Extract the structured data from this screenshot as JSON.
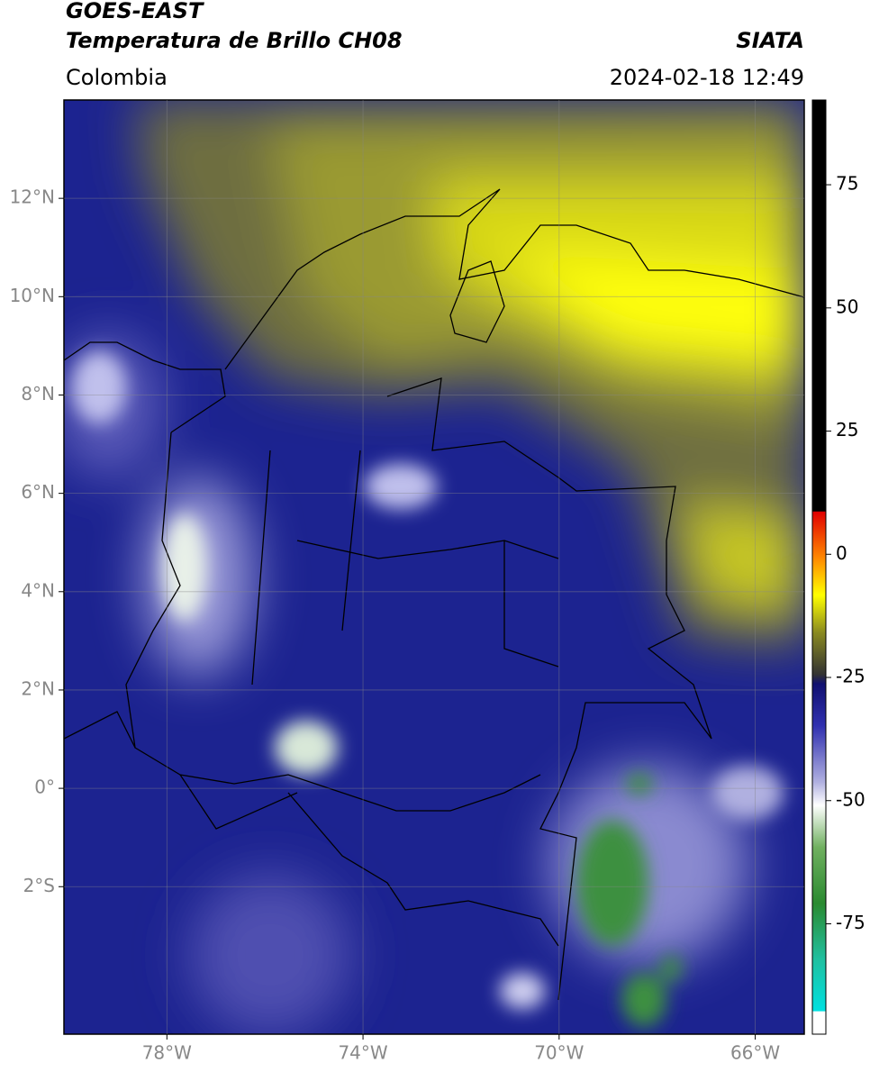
{
  "header": {
    "title": "GOES-EAST",
    "subtitle": "Temperatura de Brillo CH08",
    "source": "SIATA",
    "region": "Colombia",
    "timestamp": "2024-02-18 12:49"
  },
  "map": {
    "xlim": [
      -80.1,
      -65
    ],
    "ylim": [
      -5,
      14
    ],
    "xticks": [
      {
        "value": -78,
        "label": "78°W"
      },
      {
        "value": -74,
        "label": "74°W"
      },
      {
        "value": -70,
        "label": "70°W"
      },
      {
        "value": -66,
        "label": "66°W"
      }
    ],
    "yticks": [
      {
        "value": 12,
        "label": "12°N"
      },
      {
        "value": 10,
        "label": "10°N"
      },
      {
        "value": 8,
        "label": "8°N"
      },
      {
        "value": 6,
        "label": "6°N"
      },
      {
        "value": 4,
        "label": "4°N"
      },
      {
        "value": 2,
        "label": "2°N"
      },
      {
        "value": 0,
        "label": "0°"
      },
      {
        "value": -2,
        "label": "2°S"
      }
    ],
    "grid": true
  },
  "colorbar": {
    "lim": [
      -97.4,
      92.2
    ],
    "ticks": [
      75,
      50,
      25,
      0,
      -25,
      -50,
      -75
    ]
  }
}
